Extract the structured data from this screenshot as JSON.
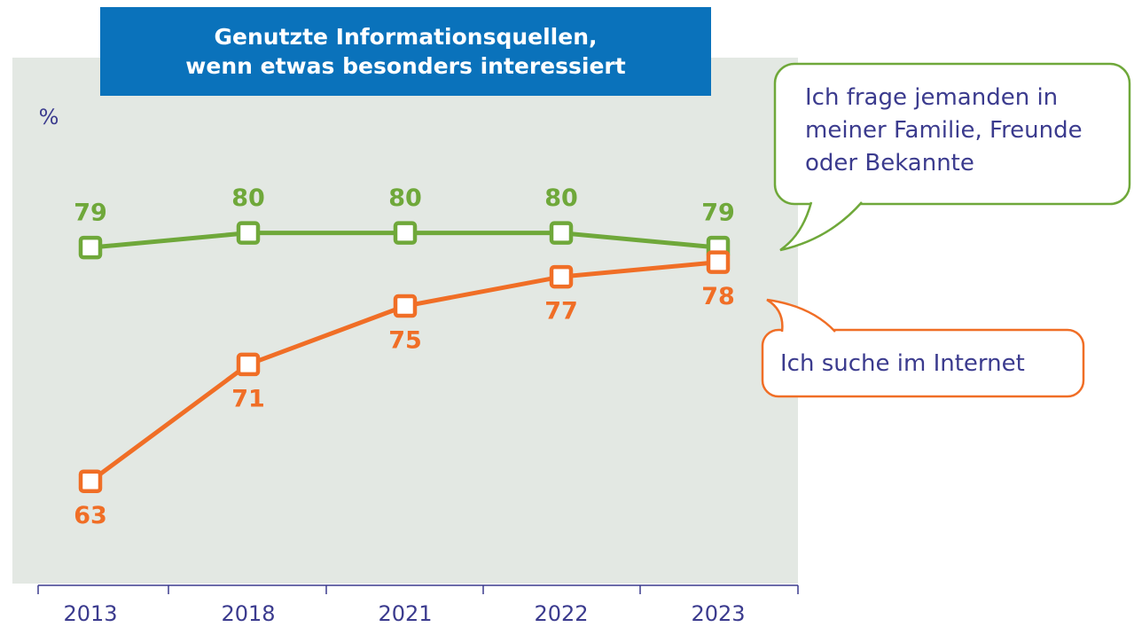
{
  "chart_data": {
    "type": "line",
    "title": "Genutzte Informationsquellen,\nwenn etwas besonders interessiert",
    "y_label": "%",
    "categories": [
      "2013",
      "2018",
      "2021",
      "2022",
      "2023"
    ],
    "series": [
      {
        "name": "Ich frage jemanden in meiner Familie, Freunde oder Bekannte",
        "color": "#6fa83a",
        "values": [
          79,
          80,
          80,
          80,
          79
        ]
      },
      {
        "name": "Ich suche im Internet",
        "color": "#f06e26",
        "values": [
          63,
          71,
          75,
          77,
          78
        ]
      }
    ],
    "ylim": [
      56,
      92
    ],
    "grid": false
  }
}
